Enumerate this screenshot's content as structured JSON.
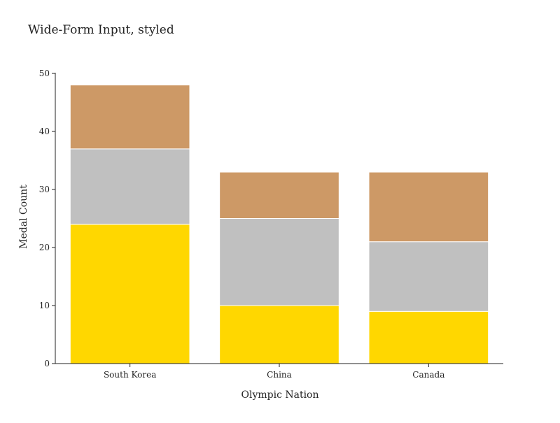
{
  "chart_data": {
    "type": "bar",
    "stacked": true,
    "title": "Wide-Form Input, styled",
    "xlabel": "Olympic Nation",
    "ylabel": "Medal Count",
    "categories": [
      "South Korea",
      "China",
      "Canada"
    ],
    "ylim": [
      0,
      50
    ],
    "yticks": [
      "0",
      "10",
      "20",
      "30",
      "40",
      "50"
    ],
    "grid": false,
    "series": [
      {
        "values": [
          24,
          10,
          9
        ],
        "color": "#ffd700"
      },
      {
        "values": [
          13,
          15,
          12
        ],
        "color": "#c0c0c0"
      },
      {
        "values": [
          11,
          8,
          12
        ],
        "color": "#cd9966"
      }
    ]
  }
}
